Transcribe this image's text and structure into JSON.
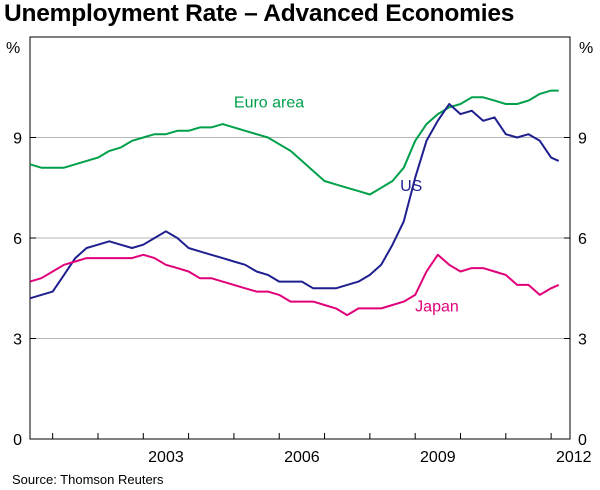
{
  "title": "Unemployment Rate – Advanced Economies",
  "source": "Source: Thomson Reuters",
  "chart_data": {
    "type": "line",
    "title": "Unemployment Rate – Advanced Economies",
    "ylabel_left": "%",
    "ylabel_right": "%",
    "ylim": [
      0,
      12
    ],
    "yticks": [
      0,
      3,
      6,
      9
    ],
    "xlim": [
      "2000-07",
      "2012-06"
    ],
    "xticks": [
      "2003",
      "2006",
      "2009",
      "2012"
    ],
    "grid": true,
    "colors": {
      "Euro area": "#00a04a",
      "US": "#1f1f8f",
      "Japan": "#e0007a"
    },
    "series": [
      {
        "name": "Euro area",
        "color": "#00a04a",
        "points": [
          [
            "2000-07",
            8.2
          ],
          [
            "2000-10",
            8.1
          ],
          [
            "2001-01",
            8.1
          ],
          [
            "2001-04",
            8.1
          ],
          [
            "2001-07",
            8.2
          ],
          [
            "2001-10",
            8.3
          ],
          [
            "2002-01",
            8.4
          ],
          [
            "2002-04",
            8.6
          ],
          [
            "2002-07",
            8.7
          ],
          [
            "2002-10",
            8.9
          ],
          [
            "2003-01",
            9.0
          ],
          [
            "2003-04",
            9.1
          ],
          [
            "2003-07",
            9.1
          ],
          [
            "2003-10",
            9.2
          ],
          [
            "2004-01",
            9.2
          ],
          [
            "2004-04",
            9.3
          ],
          [
            "2004-07",
            9.3
          ],
          [
            "2004-10",
            9.4
          ],
          [
            "2005-01",
            9.3
          ],
          [
            "2005-04",
            9.2
          ],
          [
            "2005-07",
            9.1
          ],
          [
            "2005-10",
            9.0
          ],
          [
            "2006-01",
            8.8
          ],
          [
            "2006-04",
            8.6
          ],
          [
            "2006-07",
            8.3
          ],
          [
            "2006-10",
            8.0
          ],
          [
            "2007-01",
            7.7
          ],
          [
            "2007-04",
            7.6
          ],
          [
            "2007-07",
            7.5
          ],
          [
            "2007-10",
            7.4
          ],
          [
            "2008-01",
            7.3
          ],
          [
            "2008-04",
            7.5
          ],
          [
            "2008-07",
            7.7
          ],
          [
            "2008-10",
            8.1
          ],
          [
            "2009-01",
            8.9
          ],
          [
            "2009-04",
            9.4
          ],
          [
            "2009-07",
            9.7
          ],
          [
            "2009-10",
            9.9
          ],
          [
            "2010-01",
            10.0
          ],
          [
            "2010-04",
            10.2
          ],
          [
            "2010-07",
            10.2
          ],
          [
            "2010-10",
            10.1
          ],
          [
            "2011-01",
            10.0
          ],
          [
            "2011-04",
            10.0
          ],
          [
            "2011-07",
            10.1
          ],
          [
            "2011-10",
            10.3
          ],
          [
            "2012-01",
            10.4
          ],
          [
            "2012-03",
            10.4
          ]
        ]
      },
      {
        "name": "US",
        "color": "#1f1f8f",
        "points": [
          [
            "2000-07",
            4.2
          ],
          [
            "2000-10",
            4.3
          ],
          [
            "2001-01",
            4.4
          ],
          [
            "2001-04",
            4.9
          ],
          [
            "2001-07",
            5.4
          ],
          [
            "2001-10",
            5.7
          ],
          [
            "2002-01",
            5.8
          ],
          [
            "2002-04",
            5.9
          ],
          [
            "2002-07",
            5.8
          ],
          [
            "2002-10",
            5.7
          ],
          [
            "2003-01",
            5.8
          ],
          [
            "2003-04",
            6.0
          ],
          [
            "2003-07",
            6.2
          ],
          [
            "2003-10",
            6.0
          ],
          [
            "2004-01",
            5.7
          ],
          [
            "2004-04",
            5.6
          ],
          [
            "2004-07",
            5.5
          ],
          [
            "2004-10",
            5.4
          ],
          [
            "2005-01",
            5.3
          ],
          [
            "2005-04",
            5.2
          ],
          [
            "2005-07",
            5.0
          ],
          [
            "2005-10",
            4.9
          ],
          [
            "2006-01",
            4.7
          ],
          [
            "2006-04",
            4.7
          ],
          [
            "2006-07",
            4.7
          ],
          [
            "2006-10",
            4.5
          ],
          [
            "2007-01",
            4.5
          ],
          [
            "2007-04",
            4.5
          ],
          [
            "2007-07",
            4.6
          ],
          [
            "2007-10",
            4.7
          ],
          [
            "2008-01",
            4.9
          ],
          [
            "2008-04",
            5.2
          ],
          [
            "2008-07",
            5.8
          ],
          [
            "2008-10",
            6.5
          ],
          [
            "2009-01",
            7.8
          ],
          [
            "2009-04",
            8.9
          ],
          [
            "2009-07",
            9.5
          ],
          [
            "2009-10",
            10.0
          ],
          [
            "2010-01",
            9.7
          ],
          [
            "2010-04",
            9.8
          ],
          [
            "2010-07",
            9.5
          ],
          [
            "2010-10",
            9.6
          ],
          [
            "2011-01",
            9.1
          ],
          [
            "2011-04",
            9.0
          ],
          [
            "2011-07",
            9.1
          ],
          [
            "2011-10",
            8.9
          ],
          [
            "2012-01",
            8.4
          ],
          [
            "2012-03",
            8.3
          ]
        ]
      },
      {
        "name": "Japan",
        "color": "#e0007a",
        "points": [
          [
            "2000-07",
            4.7
          ],
          [
            "2000-10",
            4.8
          ],
          [
            "2001-01",
            5.0
          ],
          [
            "2001-04",
            5.2
          ],
          [
            "2001-07",
            5.3
          ],
          [
            "2001-10",
            5.4
          ],
          [
            "2002-01",
            5.4
          ],
          [
            "2002-04",
            5.4
          ],
          [
            "2002-07",
            5.4
          ],
          [
            "2002-10",
            5.4
          ],
          [
            "2003-01",
            5.5
          ],
          [
            "2003-04",
            5.4
          ],
          [
            "2003-07",
            5.2
          ],
          [
            "2003-10",
            5.1
          ],
          [
            "2004-01",
            5.0
          ],
          [
            "2004-04",
            4.8
          ],
          [
            "2004-07",
            4.8
          ],
          [
            "2004-10",
            4.7
          ],
          [
            "2005-01",
            4.6
          ],
          [
            "2005-04",
            4.5
          ],
          [
            "2005-07",
            4.4
          ],
          [
            "2005-10",
            4.4
          ],
          [
            "2006-01",
            4.3
          ],
          [
            "2006-04",
            4.1
          ],
          [
            "2006-07",
            4.1
          ],
          [
            "2006-10",
            4.1
          ],
          [
            "2007-01",
            4.0
          ],
          [
            "2007-04",
            3.9
          ],
          [
            "2007-07",
            3.7
          ],
          [
            "2007-10",
            3.9
          ],
          [
            "2008-01",
            3.9
          ],
          [
            "2008-04",
            3.9
          ],
          [
            "2008-07",
            4.0
          ],
          [
            "2008-10",
            4.1
          ],
          [
            "2009-01",
            4.3
          ],
          [
            "2009-04",
            5.0
          ],
          [
            "2009-07",
            5.5
          ],
          [
            "2009-10",
            5.2
          ],
          [
            "2010-01",
            5.0
          ],
          [
            "2010-04",
            5.1
          ],
          [
            "2010-07",
            5.1
          ],
          [
            "2010-10",
            5.0
          ],
          [
            "2011-01",
            4.9
          ],
          [
            "2011-04",
            4.6
          ],
          [
            "2011-07",
            4.6
          ],
          [
            "2011-10",
            4.3
          ],
          [
            "2012-01",
            4.5
          ],
          [
            "2012-03",
            4.6
          ]
        ]
      }
    ],
    "series_labels": [
      {
        "series": "Euro area",
        "text": "Euro area",
        "at": [
          "2005-01",
          9.9
        ]
      },
      {
        "series": "US",
        "text": "US",
        "at": [
          "2008-09",
          7.4
        ]
      },
      {
        "series": "Japan",
        "text": "Japan",
        "at": [
          "2009-01",
          3.8
        ]
      }
    ]
  }
}
